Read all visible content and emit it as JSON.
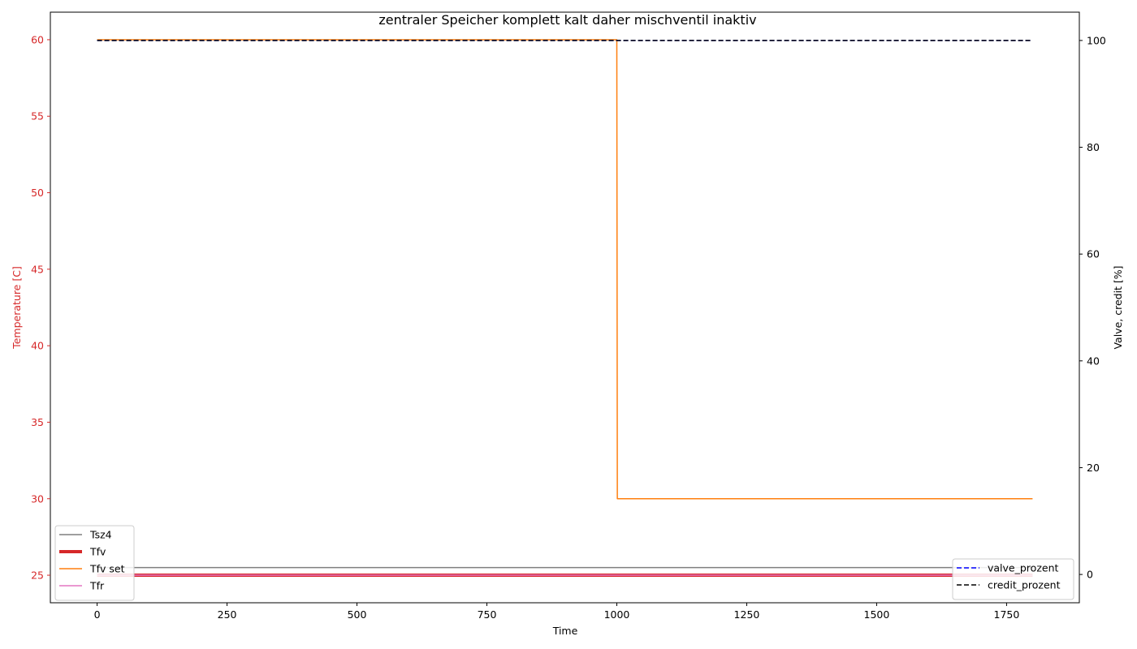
{
  "chart_data": {
    "type": "line",
    "title": "zentraler Speicher komplett kalt daher mischventil inaktiv",
    "xlabel": "Time",
    "ylabel_left": "Temperature [C]",
    "ylabel_right": "Valve, credit [%]",
    "xlim": [
      -90,
      1890
    ],
    "ylim_left": [
      23.2,
      61.8
    ],
    "ylim_right": [
      -5.3,
      105.3
    ],
    "x_ticks": [
      0,
      250,
      500,
      750,
      1000,
      1250,
      1500,
      1750
    ],
    "y_left_ticks": [
      25,
      30,
      35,
      40,
      45,
      50,
      55,
      60
    ],
    "y_right_ticks": [
      0,
      20,
      40,
      60,
      80,
      100
    ],
    "colors": {
      "left_axis": "#d62728",
      "right_axis": "#000000"
    },
    "series_left": [
      {
        "name": "Tsz4",
        "color": "#7f7f7f",
        "width": 1.5,
        "dash": "",
        "x": [
          0,
          1800
        ],
        "y": [
          25.5,
          25.5
        ]
      },
      {
        "name": "Tfv",
        "color": "#d62728",
        "width": 4,
        "dash": "",
        "x": [
          0,
          1800
        ],
        "y": [
          25.0,
          25.0
        ]
      },
      {
        "name": "Tfv set",
        "color": "#ff7f0e",
        "width": 1.5,
        "dash": "",
        "x": [
          0,
          1000,
          1001,
          1800
        ],
        "y": [
          60,
          60,
          30,
          30
        ]
      },
      {
        "name": "Tfr",
        "color": "#e377c2",
        "width": 1.5,
        "dash": "",
        "x": [
          0,
          1800
        ],
        "y": [
          25.0,
          25.0
        ]
      }
    ],
    "series_right": [
      {
        "name": "valve_prozent",
        "color": "#0000ff",
        "width": 1.5,
        "dash": "6,3",
        "x": [
          0,
          1800
        ],
        "y": [
          100,
          100
        ]
      },
      {
        "name": "credit_prozent",
        "color": "#000000",
        "width": 1.5,
        "dash": "6,3",
        "x": [
          0,
          1800
        ],
        "y": [
          100,
          100
        ]
      }
    ],
    "legend_left_placement": "lower-left",
    "legend_right_placement": "lower-right",
    "grid": false
  }
}
